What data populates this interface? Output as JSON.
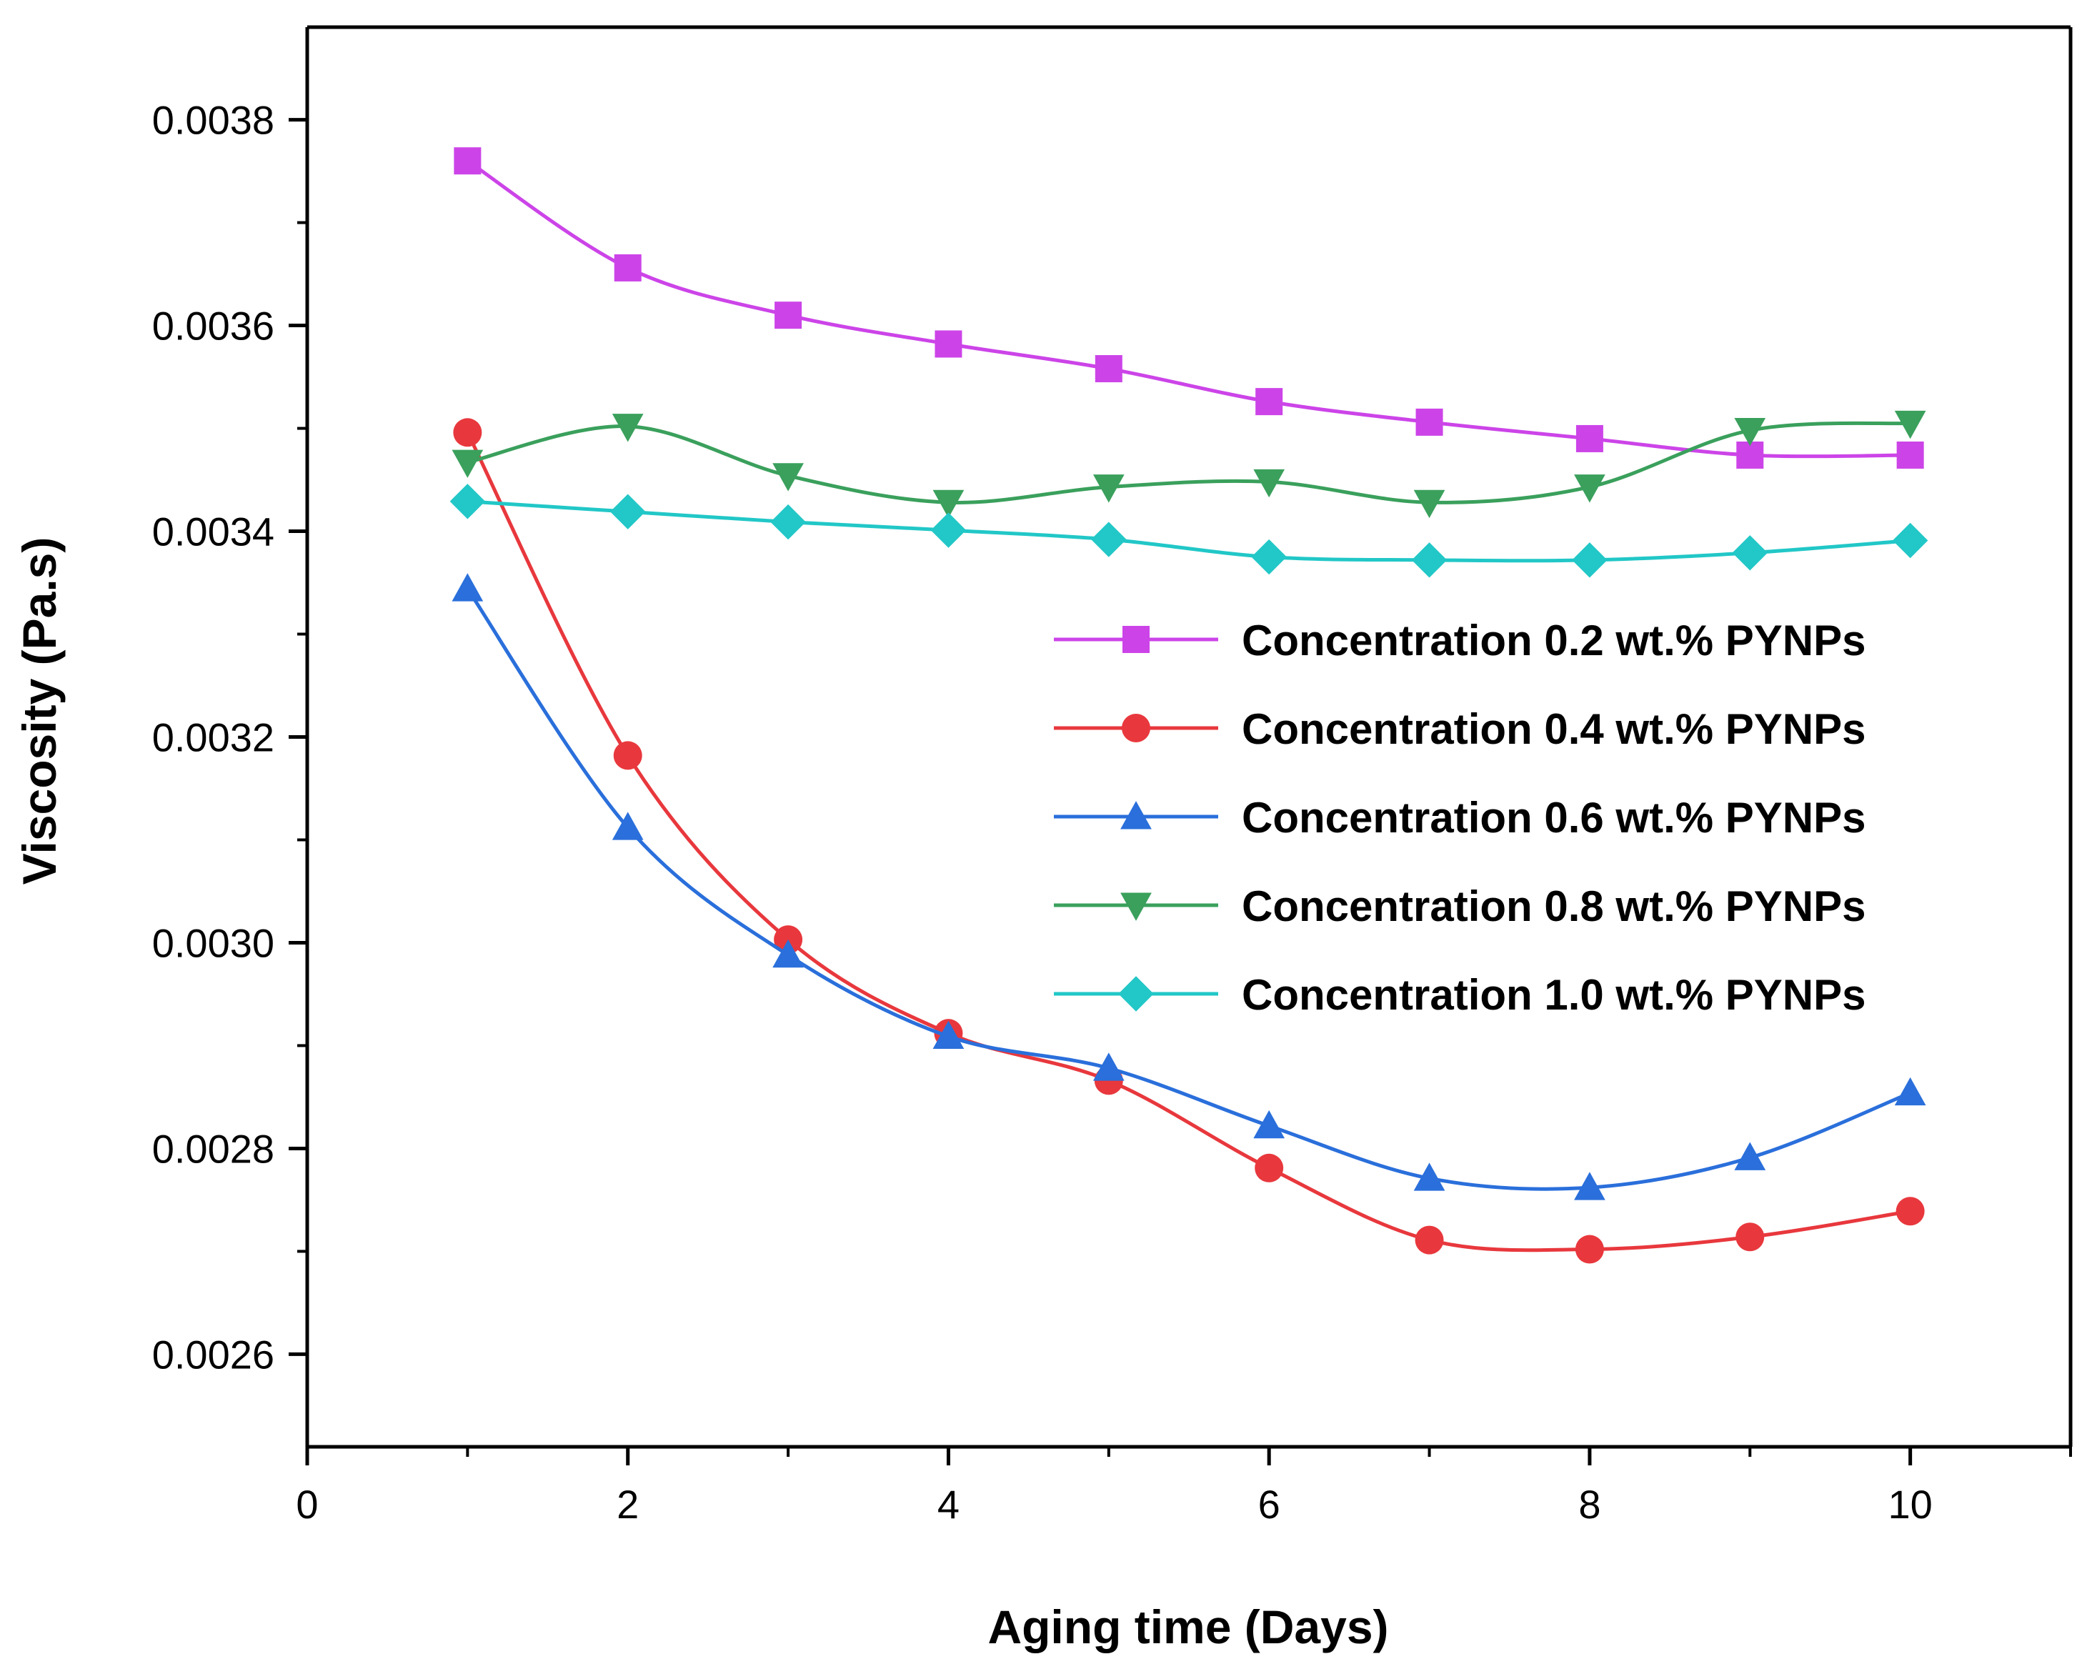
{
  "chart_data": {
    "type": "line",
    "title": "",
    "xlabel": "Aging time (Days)",
    "ylabel": "Viscosity (Pa.s)",
    "xlim": [
      0,
      11
    ],
    "ylim": [
      0.00251,
      0.00389
    ],
    "x_ticks": [
      0,
      2,
      4,
      6,
      8,
      10
    ],
    "x_tick_labels": [
      "0",
      "2",
      "4",
      "6",
      "8",
      "10"
    ],
    "y_ticks": [
      0.0026,
      0.0028,
      0.003,
      0.0032,
      0.0034,
      0.0036,
      0.0038
    ],
    "y_tick_labels": [
      "0.0026",
      "0.0028",
      "0.0030",
      "0.0032",
      "0.0034",
      "0.0036",
      "0.0038"
    ],
    "grid": false,
    "legend_position": "center-right",
    "x": [
      1,
      2,
      3,
      4,
      5,
      6,
      7,
      8,
      9,
      10
    ],
    "series": [
      {
        "name": "Concentration 0.2 wt.% PYNPs",
        "color": "#cc44e8",
        "marker": "square",
        "values": [
          0.00376,
          0.003656,
          0.00361,
          0.003582,
          0.003558,
          0.003526,
          0.003506,
          0.00349,
          0.003474,
          0.003474
        ]
      },
      {
        "name": "Concentration 0.4 wt.% PYNPs",
        "color": "#e8383d",
        "marker": "circle",
        "values": [
          0.003496,
          0.003182,
          0.003003,
          0.002912,
          0.002866,
          0.002781,
          0.002711,
          0.002702,
          0.002714,
          0.002739
        ]
      },
      {
        "name": "Concentration 0.6 wt.% PYNPs",
        "color": "#2a6fdb",
        "marker": "triangle-up",
        "values": [
          0.003344,
          0.003112,
          0.002988,
          0.002909,
          0.002878,
          0.002822,
          0.002771,
          0.002762,
          0.002791,
          0.002854
        ]
      },
      {
        "name": "Concentration 0.8 wt.% PYNPs",
        "color": "#3aa05c",
        "marker": "triangle-down",
        "values": [
          0.003467,
          0.003502,
          0.003454,
          0.003428,
          0.003443,
          0.003448,
          0.003428,
          0.003443,
          0.003498,
          0.003505
        ]
      },
      {
        "name": "Concentration 1.0 wt.% PYNPs",
        "color": "#22c7c7",
        "marker": "diamond",
        "values": [
          0.003429,
          0.003419,
          0.003409,
          0.003401,
          0.003392,
          0.003375,
          0.003372,
          0.003372,
          0.003379,
          0.003391
        ]
      }
    ]
  }
}
